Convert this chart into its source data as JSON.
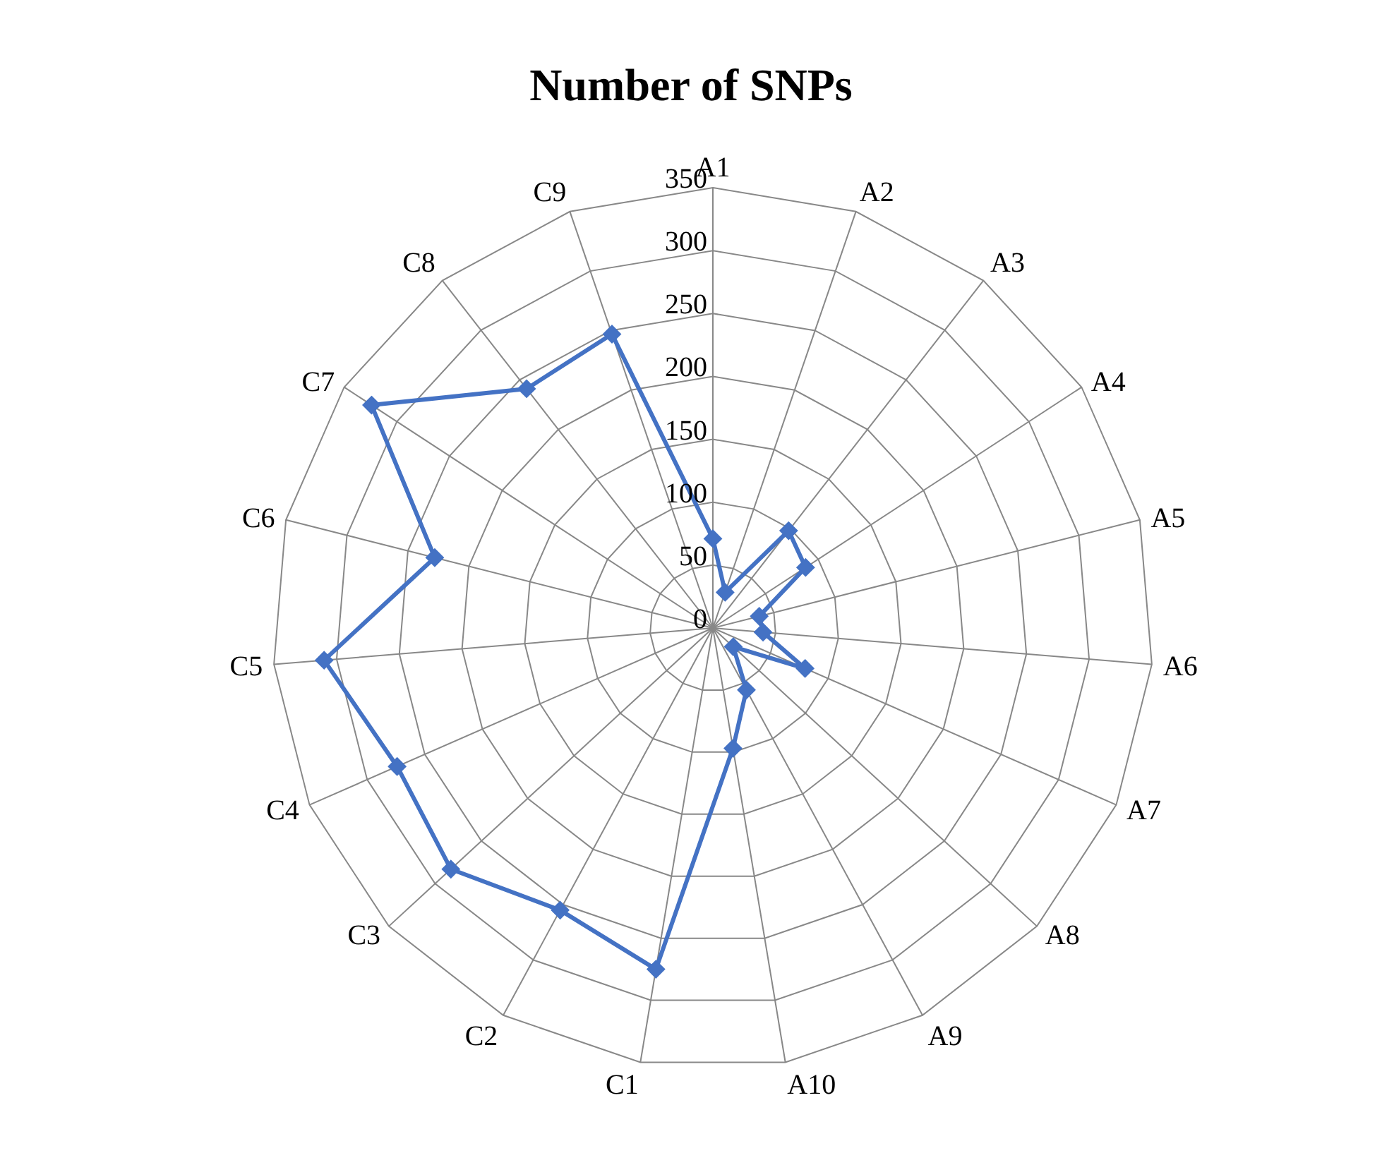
{
  "chart_data": {
    "type": "radar",
    "title": "Number of SNPs",
    "categories": [
      "A1",
      "A2",
      "A3",
      "A4",
      "A5",
      "A6",
      "A7",
      "A8",
      "A9",
      "A10",
      "C1",
      "C2",
      "C3",
      "C4",
      "C5",
      "C6",
      "C7",
      "C8",
      "C9"
    ],
    "series": [
      {
        "color": "#4472c4",
        "values": [
          71,
          30,
          98,
          88,
          38,
          40,
          80,
          22,
          56,
          97,
          275,
          255,
          283,
          274,
          310,
          228,
          324,
          241,
          247
        ]
      }
    ],
    "ylim": [
      0,
      350
    ],
    "yticks": [
      0,
      50,
      100,
      150,
      200,
      250,
      300,
      350
    ],
    "grid": true,
    "marker": "diamond"
  }
}
